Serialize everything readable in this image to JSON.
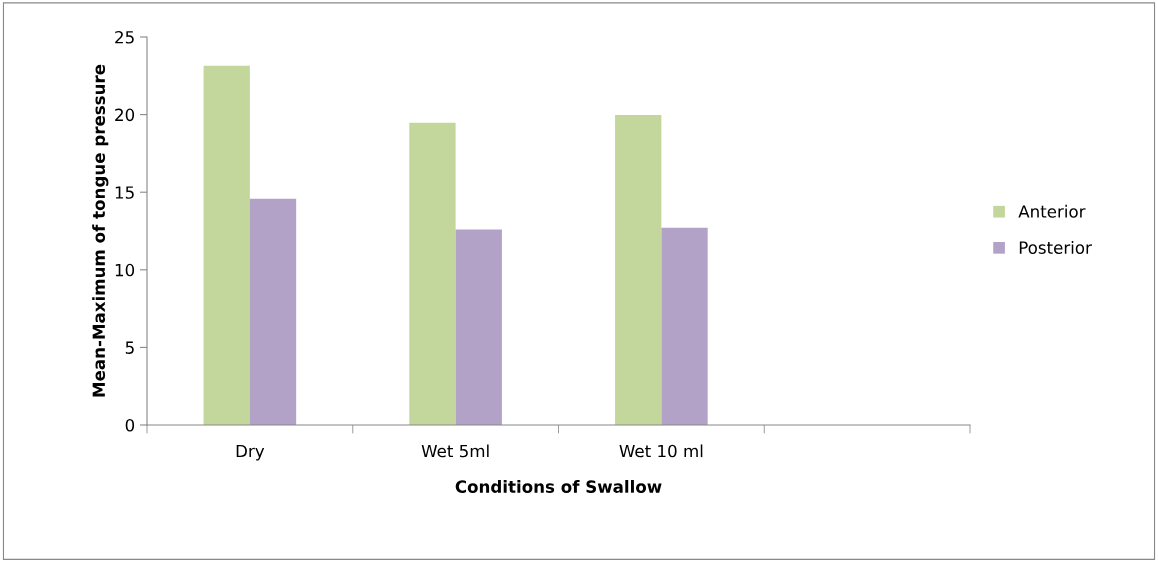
{
  "chart_data": {
    "type": "bar",
    "xlabel": "Conditions of Swallow",
    "ylabel": "Mean-Maximum of tongue pressure",
    "categories": [
      "Dry",
      "Wet 5ml",
      "Wet 10 ml",
      null
    ],
    "series": [
      {
        "name": "Anterior",
        "color": "#c3d69b",
        "values": [
          23.15,
          19.48,
          19.97,
          null
        ]
      },
      {
        "name": "Posterior",
        "color": "#b3a2c7",
        "values": [
          14.58,
          12.6,
          12.71,
          null
        ]
      }
    ],
    "ylim": [
      0,
      25
    ],
    "yticks": [
      0,
      5,
      10,
      15,
      20,
      25
    ],
    "grid": false,
    "legend": "right"
  }
}
